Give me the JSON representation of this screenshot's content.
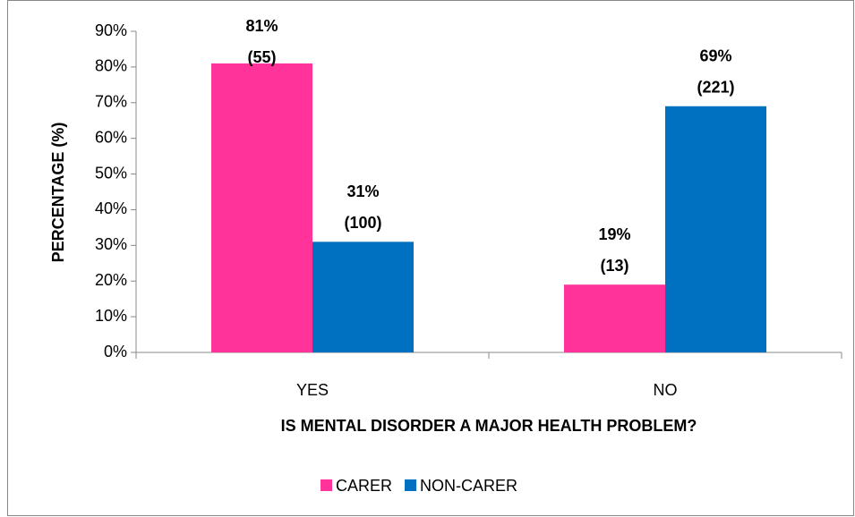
{
  "chart_data": {
    "type": "bar",
    "x_label": "IS MENTAL DISORDER  A MAJOR HEALTH PROBLEM?",
    "y_label": "PERCENTAGE (%)",
    "categories": [
      "YES",
      "NO"
    ],
    "series": [
      {
        "name": "CARER",
        "color": "#ff3399",
        "values": [
          81,
          19
        ],
        "value_labels": [
          "81%",
          "19%"
        ],
        "count_labels": [
          "(55)",
          "(13)"
        ]
      },
      {
        "name": "NON-CARER",
        "color": "#0070c0",
        "values": [
          31,
          69
        ],
        "value_labels": [
          "31%",
          "69%"
        ],
        "count_labels": [
          "(100)",
          "(221)"
        ]
      }
    ],
    "ylim": [
      0,
      90
    ],
    "yticks": [
      {
        "value": 0,
        "label": "0%"
      },
      {
        "value": 10,
        "label": "10%"
      },
      {
        "value": 20,
        "label": "20%"
      },
      {
        "value": 30,
        "label": "30%"
      },
      {
        "value": 40,
        "label": "40%"
      },
      {
        "value": 50,
        "label": "50%"
      },
      {
        "value": 60,
        "label": "60%"
      },
      {
        "value": 70,
        "label": "70%"
      },
      {
        "value": 80,
        "label": "80%"
      },
      {
        "value": 90,
        "label": "90%"
      }
    ],
    "grid": false,
    "legend": "bottom"
  }
}
